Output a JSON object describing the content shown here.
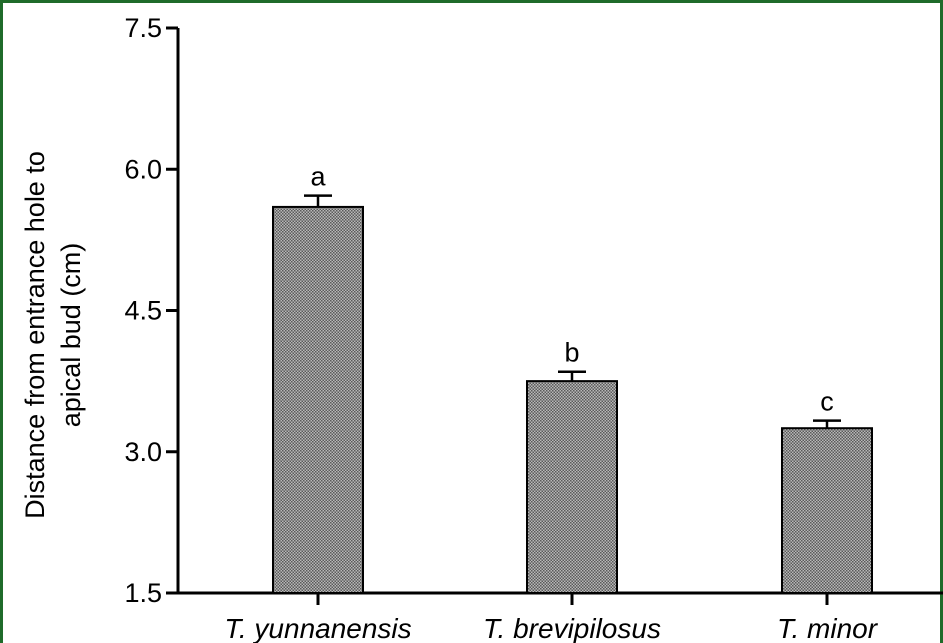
{
  "chart_data": {
    "type": "bar",
    "categories": [
      "T. yunnanensis",
      "T. brevipilosus",
      "T. minor"
    ],
    "values": [
      5.6,
      3.75,
      3.25
    ],
    "errors": [
      0.12,
      0.1,
      0.08
    ],
    "significance": [
      "a",
      "b",
      "c"
    ],
    "ylabel_line1": "Distance from entrance hole to",
    "ylabel_line2": "apical bud (cm)",
    "ylim": [
      1.5,
      7.5
    ],
    "yticks": [
      "1.5",
      "3.0",
      "4.5",
      "6.0",
      "7.5"
    ],
    "bar_fill": "#8c8c8c",
    "frame_color": "#1f6b2a"
  }
}
